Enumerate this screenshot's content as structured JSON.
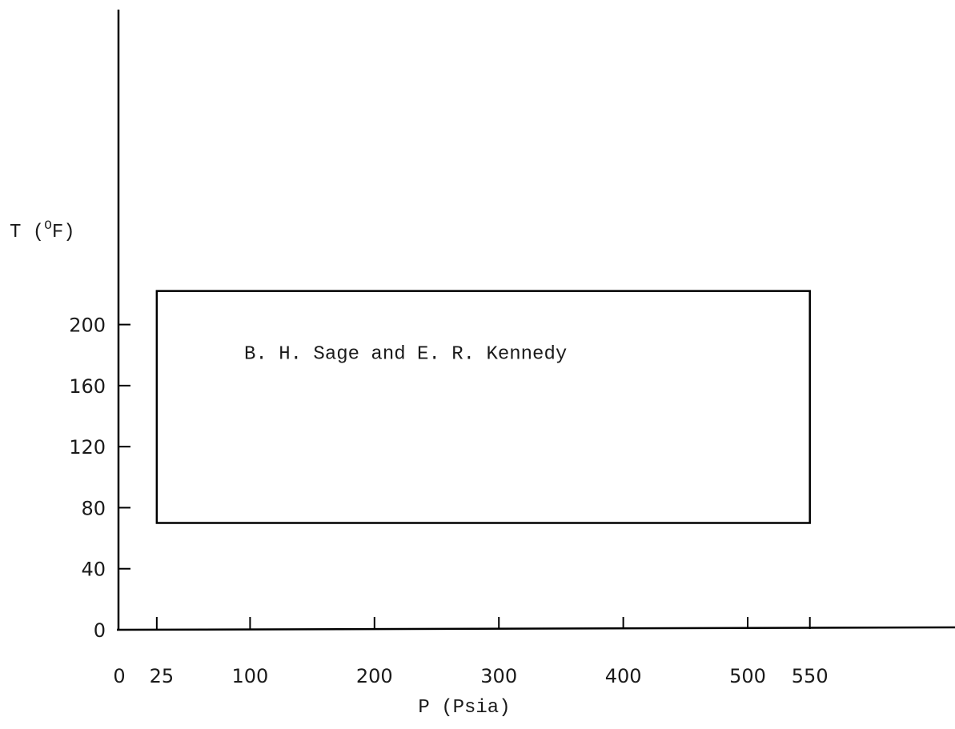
{
  "chart_data": {
    "type": "region",
    "xlabel": "P (Psia)",
    "ylabel": {
      "prefix": "T (",
      "superscript": "O",
      "suffix": "F)"
    },
    "x_ticks": [
      0,
      25,
      100,
      200,
      300,
      400,
      500,
      550
    ],
    "x_tick_labels": [
      "0",
      "25",
      "100",
      "200",
      "300",
      "400",
      "500",
      "550"
    ],
    "y_ticks": [
      0,
      40,
      80,
      120,
      160,
      200
    ],
    "y_tick_labels": [
      "0",
      "40",
      "80",
      "120",
      "160",
      "200"
    ],
    "regions": [
      {
        "label": "B. H. Sage and E. R. Kennedy",
        "x_range": [
          25,
          550
        ],
        "y_range": [
          70,
          222
        ]
      }
    ],
    "grid": false,
    "legend": "none"
  }
}
